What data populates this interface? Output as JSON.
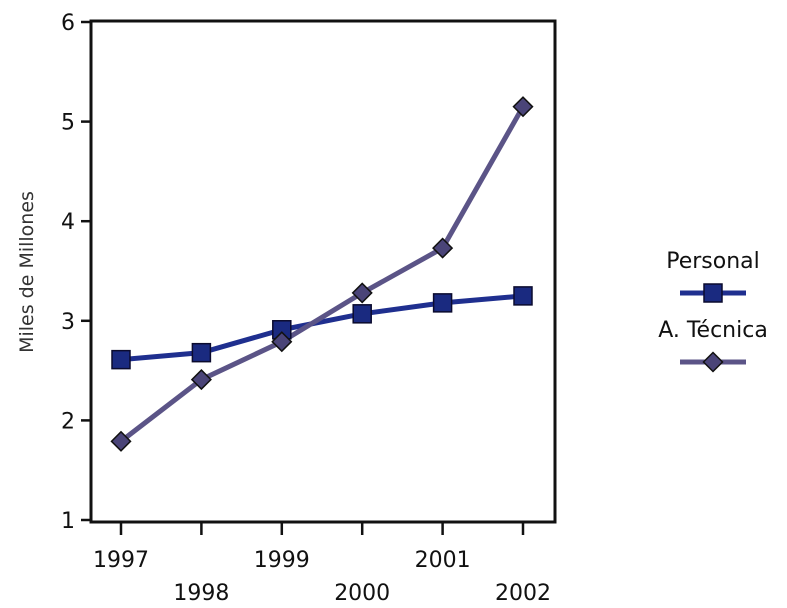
{
  "chart_data": {
    "type": "line",
    "title": "",
    "xlabel": "",
    "ylabel": "Miles de Millones",
    "x": [
      "1997",
      "1998",
      "1999",
      "2000",
      "2001",
      "2002"
    ],
    "ylim": [
      1,
      6
    ],
    "yticks": [
      "1",
      "2",
      "3",
      "4",
      "5",
      "6"
    ],
    "grid": false,
    "legend_position": "right",
    "series": [
      {
        "name": "Personal",
        "values": [
          2.61,
          2.68,
          2.91,
          3.07,
          3.18,
          3.25
        ],
        "color": "#1f2f8f",
        "marker": "square"
      },
      {
        "name": "A. Técnica",
        "values": [
          1.79,
          2.41,
          2.79,
          3.28,
          3.73,
          5.15
        ],
        "color": "#5b5487",
        "marker": "diamond"
      }
    ]
  }
}
